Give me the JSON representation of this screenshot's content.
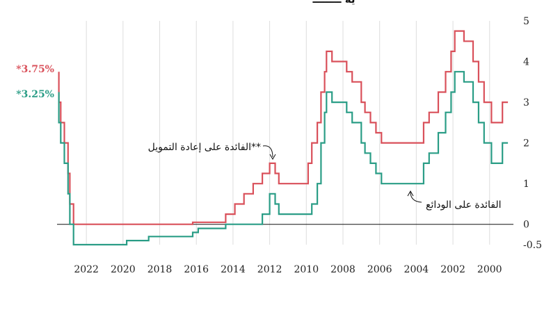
{
  "chart_data": {
    "type": "line",
    "title": "ية ــــــــ",
    "colors": {
      "refinancing": "#d9505a",
      "deposit": "#2a9d86",
      "grid": "#dddddd",
      "zero_line": "#111111"
    },
    "x_axis": {
      "direction": "reversed",
      "xlim": [
        1998.7,
        2023.6
      ],
      "tick_labels": [
        "2022",
        "2020",
        "2018",
        "2016",
        "2014",
        "2012",
        "2010",
        "2008",
        "2006",
        "2004",
        "2002",
        "2000"
      ],
      "tick_values": [
        2022,
        2020,
        2018,
        2016,
        2014,
        2012,
        2010,
        2008,
        2006,
        2004,
        2002,
        2000
      ]
    },
    "y_axis": {
      "position": "right",
      "ylim": [
        -0.5,
        5
      ],
      "tick_labels": [
        "5",
        "4",
        "3",
        "2",
        "1",
        "0",
        "-0.5"
      ],
      "tick_values": [
        5,
        4,
        3,
        2,
        1,
        0,
        -0.5
      ]
    },
    "grid": "vertical",
    "series": [
      {
        "key": "refinancing",
        "name": "الفائدة على إعادة التمويل**",
        "end_label": "*3.75%",
        "points": [
          [
            1999.0,
            3.0
          ],
          [
            1999.3,
            2.5
          ],
          [
            1999.9,
            3.0
          ],
          [
            2000.3,
            3.5
          ],
          [
            2000.6,
            4.0
          ],
          [
            2000.9,
            4.5
          ],
          [
            2001.4,
            4.75
          ],
          [
            2001.9,
            4.25
          ],
          [
            2002.1,
            3.75
          ],
          [
            2002.4,
            3.25
          ],
          [
            2002.8,
            2.75
          ],
          [
            2003.3,
            2.5
          ],
          [
            2003.6,
            2.0
          ],
          [
            2005.9,
            2.25
          ],
          [
            2006.2,
            2.5
          ],
          [
            2006.5,
            2.75
          ],
          [
            2006.8,
            3.0
          ],
          [
            2007.0,
            3.5
          ],
          [
            2007.5,
            3.75
          ],
          [
            2007.8,
            4.0
          ],
          [
            2008.6,
            4.25
          ],
          [
            2008.9,
            3.75
          ],
          [
            2009.0,
            3.25
          ],
          [
            2009.2,
            2.5
          ],
          [
            2009.4,
            2.0
          ],
          [
            2009.7,
            1.5
          ],
          [
            2009.9,
            1.0
          ],
          [
            2011.5,
            1.25
          ],
          [
            2011.7,
            1.5
          ],
          [
            2012.0,
            1.25
          ],
          [
            2012.4,
            1.0
          ],
          [
            2012.9,
            0.75
          ],
          [
            2013.4,
            0.5
          ],
          [
            2013.9,
            0.25
          ],
          [
            2014.4,
            0.05
          ],
          [
            2016.2,
            0.0
          ],
          [
            2022.7,
            0.5
          ],
          [
            2022.9,
            1.25
          ],
          [
            2023.0,
            2.0
          ],
          [
            2023.2,
            2.5
          ],
          [
            2023.4,
            3.0
          ],
          [
            2023.5,
            3.75
          ]
        ],
        "annotation": "الفائدة على إعادة التمويل**"
      },
      {
        "key": "deposit",
        "name": "الفائدة على الودائع",
        "end_label": "*3.25%",
        "points": [
          [
            1999.0,
            2.0
          ],
          [
            1999.3,
            1.5
          ],
          [
            1999.9,
            2.0
          ],
          [
            2000.3,
            2.5
          ],
          [
            2000.6,
            3.0
          ],
          [
            2000.9,
            3.5
          ],
          [
            2001.4,
            3.75
          ],
          [
            2001.9,
            3.25
          ],
          [
            2002.1,
            2.75
          ],
          [
            2002.4,
            2.25
          ],
          [
            2002.8,
            1.75
          ],
          [
            2003.3,
            1.5
          ],
          [
            2003.6,
            1.0
          ],
          [
            2005.9,
            1.25
          ],
          [
            2006.2,
            1.5
          ],
          [
            2006.5,
            1.75
          ],
          [
            2006.8,
            2.0
          ],
          [
            2007.0,
            2.5
          ],
          [
            2007.5,
            2.75
          ],
          [
            2007.8,
            3.0
          ],
          [
            2008.6,
            3.25
          ],
          [
            2008.9,
            2.75
          ],
          [
            2009.0,
            2.0
          ],
          [
            2009.2,
            1.0
          ],
          [
            2009.4,
            0.5
          ],
          [
            2009.7,
            0.25
          ],
          [
            2011.5,
            0.5
          ],
          [
            2011.7,
            0.75
          ],
          [
            2012.0,
            0.25
          ],
          [
            2012.4,
            0.0
          ],
          [
            2014.4,
            -0.1
          ],
          [
            2015.9,
            -0.2
          ],
          [
            2016.2,
            -0.3
          ],
          [
            2018.6,
            -0.4
          ],
          [
            2019.8,
            -0.5
          ],
          [
            2022.7,
            0.0
          ],
          [
            2022.9,
            0.75
          ],
          [
            2023.0,
            1.5
          ],
          [
            2023.2,
            2.0
          ],
          [
            2023.4,
            2.5
          ],
          [
            2023.5,
            3.25
          ]
        ],
        "annotation": "الفائدة على الودائع"
      }
    ]
  }
}
